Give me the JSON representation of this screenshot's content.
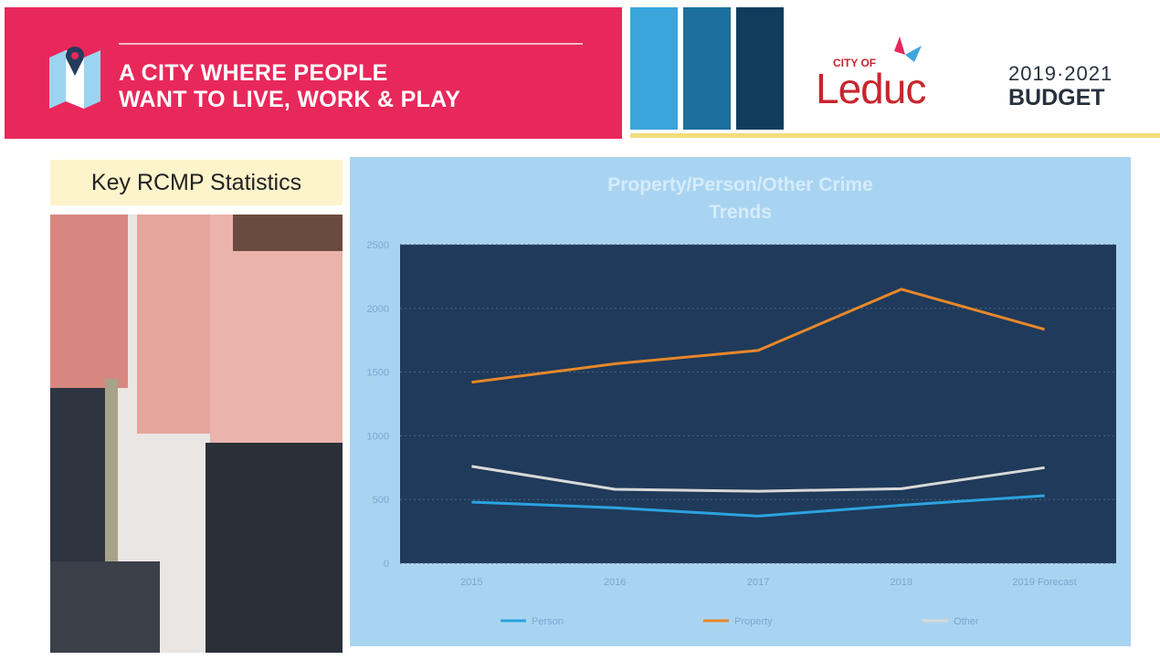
{
  "header": {
    "tagline_line1": "A CITY WHERE PEOPLE",
    "tagline_line2": "WANT TO LIVE, WORK & PLAY",
    "city_of": "CITY OF",
    "city": "Leduc",
    "budget_years": "2019·2021",
    "budget": "BUDGET"
  },
  "section_title": "Key RCMP Statistics",
  "chart_data": {
    "type": "line",
    "title": "Property/Person/Other Crime Trends",
    "categories": [
      "2015",
      "2016",
      "2017",
      "2018",
      "2019 Forecast"
    ],
    "series": [
      {
        "name": "Person",
        "color": "#2ba3e0",
        "values": [
          480,
          435,
          370,
          455,
          530
        ]
      },
      {
        "name": "Property",
        "color": "#e8872a",
        "values": [
          1420,
          1565,
          1670,
          2150,
          1835
        ]
      },
      {
        "name": "Other",
        "color": "#d9d9d9",
        "values": [
          760,
          580,
          565,
          585,
          750
        ]
      }
    ],
    "ylim": [
      0,
      2500
    ],
    "yticks": [
      0,
      500,
      1000,
      1500,
      2000,
      2500
    ],
    "grid": true,
    "legend": "bottom"
  }
}
